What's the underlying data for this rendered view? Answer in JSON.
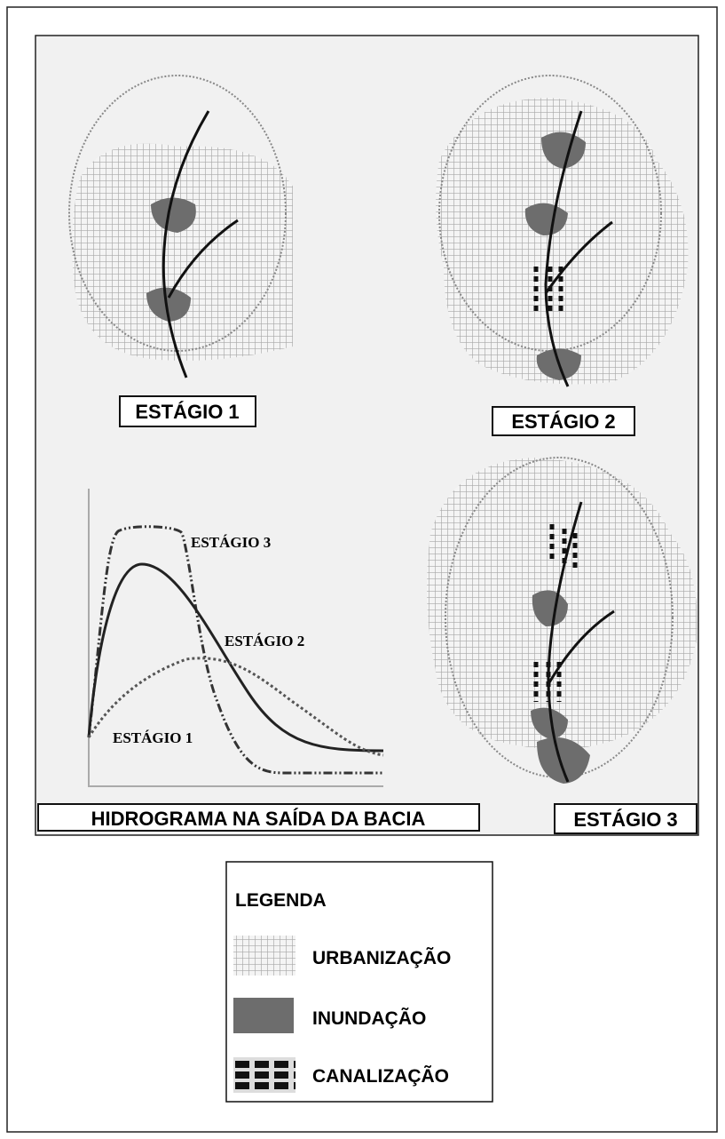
{
  "stages": [
    {
      "label": "ESTÁGIO 1"
    },
    {
      "label": "ESTÁGIO 2"
    },
    {
      "label": "ESTÁGIO 3"
    }
  ],
  "hydrograph": {
    "title": "HIDROGRAMA NA SAÍDA DA BACIA",
    "curves": [
      "ESTÁGIO 3",
      "ESTÁGIO 2",
      "ESTÁGIO 1"
    ]
  },
  "legend": {
    "title": "LEGENDA",
    "items": [
      "URBANIZAÇÃO",
      "INUNDAÇÃO",
      "CANALIZAÇÃO"
    ]
  }
}
